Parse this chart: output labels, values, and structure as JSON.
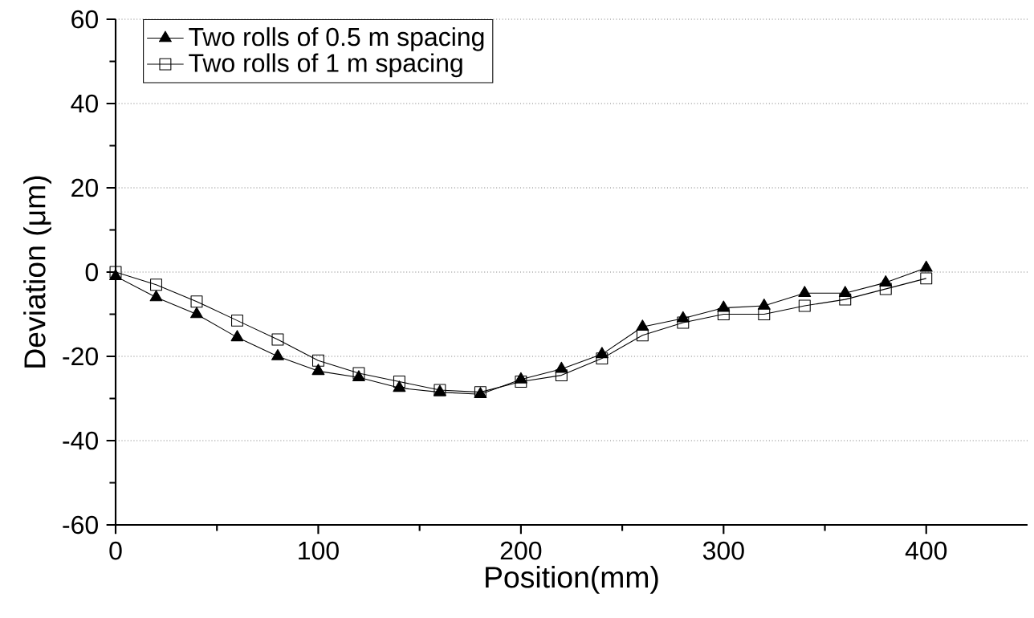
{
  "chart_data": {
    "type": "line",
    "xlabel": "Position(mm)",
    "ylabel": "Deviation (μm)",
    "x": [
      0,
      20,
      40,
      60,
      80,
      100,
      120,
      140,
      160,
      180,
      200,
      220,
      240,
      260,
      280,
      300,
      320,
      340,
      360,
      380,
      400
    ],
    "series": [
      {
        "name": "Two rolls of 0.5 m spacing",
        "color": "#000000",
        "marker": "triangle",
        "values": [
          -1,
          -6,
          -10,
          -15.5,
          -20,
          -23.5,
          -25,
          -27.5,
          -28.5,
          -29,
          -25.5,
          -23,
          -19.5,
          -13,
          -11,
          -8.5,
          -8,
          -5,
          -5,
          -2.5,
          1
        ]
      },
      {
        "name": "Two rolls of 1 m spacing",
        "color": "#000000",
        "marker": "square",
        "values": [
          0,
          -3,
          -7,
          -11.5,
          -16,
          -21,
          -24,
          -26,
          -28,
          -28.5,
          -26,
          -24.5,
          -20.5,
          -15,
          -12,
          -10,
          -10,
          -8,
          -6.5,
          -4,
          -1.5
        ]
      }
    ],
    "xlim": [
      0,
      450
    ],
    "xticks": [
      0,
      100,
      200,
      300,
      400
    ],
    "ylim": [
      -60,
      60
    ],
    "yticks": [
      -60,
      -40,
      -20,
      0,
      20,
      40,
      60
    ],
    "grid": "y",
    "legend": "top left",
    "line_style": "solid"
  }
}
